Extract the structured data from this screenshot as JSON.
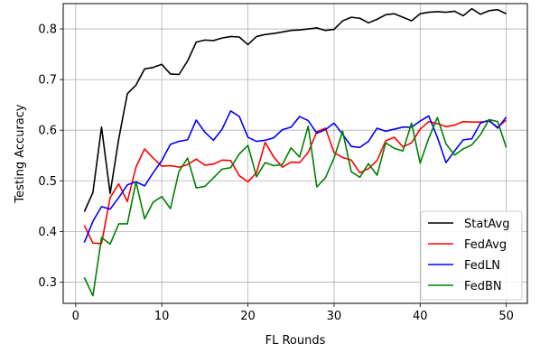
{
  "chart_data": {
    "type": "line",
    "xlabel": "FL Rounds",
    "ylabel": "Testing Accuracy",
    "xlim": [
      -1.45,
      52.45
    ],
    "ylim": [
      0.258,
      0.85
    ],
    "xticks": [
      0,
      10,
      20,
      30,
      40,
      50
    ],
    "yticks": [
      0.3,
      0.4,
      0.5,
      0.6,
      0.7,
      0.8
    ],
    "xtick_labels": [
      "0",
      "10",
      "20",
      "30",
      "40",
      "50"
    ],
    "ytick_labels": [
      "0.3",
      "0.4",
      "0.5",
      "0.6",
      "0.7",
      "0.8"
    ],
    "grid": true,
    "legend_position": "bottom-right",
    "x": [
      1,
      2,
      3,
      4,
      5,
      6,
      7,
      8,
      9,
      10,
      11,
      12,
      13,
      14,
      15,
      16,
      17,
      18,
      19,
      20,
      21,
      22,
      23,
      24,
      25,
      26,
      27,
      28,
      29,
      30,
      31,
      32,
      33,
      34,
      35,
      36,
      37,
      38,
      39,
      40,
      41,
      42,
      43,
      44,
      45,
      46,
      47,
      48,
      49,
      50
    ],
    "series": [
      {
        "name": "StatAvg",
        "color": "#000000",
        "values": [
          0.439,
          0.477,
          0.606,
          0.475,
          0.583,
          0.672,
          0.689,
          0.721,
          0.724,
          0.73,
          0.711,
          0.71,
          0.737,
          0.774,
          0.778,
          0.777,
          0.782,
          0.785,
          0.784,
          0.769,
          0.785,
          0.789,
          0.791,
          0.794,
          0.797,
          0.798,
          0.8,
          0.802,
          0.797,
          0.799,
          0.816,
          0.823,
          0.821,
          0.812,
          0.819,
          0.828,
          0.83,
          0.823,
          0.816,
          0.83,
          0.833,
          0.834,
          0.833,
          0.835,
          0.826,
          0.84,
          0.829,
          0.836,
          0.838,
          0.83
        ]
      },
      {
        "name": "FedAvg",
        "color": "#ff0000",
        "values": [
          0.412,
          0.377,
          0.376,
          0.467,
          0.494,
          0.459,
          0.527,
          0.563,
          0.545,
          0.529,
          0.53,
          0.527,
          0.532,
          0.543,
          0.531,
          0.533,
          0.541,
          0.54,
          0.51,
          0.498,
          0.516,
          0.576,
          0.547,
          0.527,
          0.537,
          0.536,
          0.556,
          0.597,
          0.604,
          0.556,
          0.546,
          0.541,
          0.516,
          0.524,
          0.54,
          0.579,
          0.586,
          0.567,
          0.575,
          0.602,
          0.617,
          0.613,
          0.607,
          0.61,
          0.617,
          0.616,
          0.616,
          0.618,
          0.606,
          0.62
        ]
      },
      {
        "name": "FedLN",
        "color": "#0000ff",
        "values": [
          0.378,
          0.42,
          0.449,
          0.444,
          0.467,
          0.492,
          0.498,
          0.49,
          0.516,
          0.54,
          0.572,
          0.578,
          0.581,
          0.62,
          0.596,
          0.58,
          0.602,
          0.638,
          0.627,
          0.586,
          0.578,
          0.58,
          0.585,
          0.601,
          0.606,
          0.627,
          0.619,
          0.594,
          0.601,
          0.614,
          0.592,
          0.568,
          0.566,
          0.578,
          0.604,
          0.598,
          0.602,
          0.606,
          0.606,
          0.618,
          0.628,
          0.586,
          0.536,
          0.559,
          0.581,
          0.583,
          0.614,
          0.62,
          0.604,
          0.626
        ]
      },
      {
        "name": "FedBN",
        "color": "#008000",
        "values": [
          0.309,
          0.273,
          0.388,
          0.375,
          0.415,
          0.415,
          0.498,
          0.425,
          0.458,
          0.469,
          0.445,
          0.519,
          0.545,
          0.486,
          0.489,
          0.506,
          0.523,
          0.526,
          0.553,
          0.57,
          0.508,
          0.536,
          0.53,
          0.532,
          0.565,
          0.547,
          0.608,
          0.488,
          0.506,
          0.545,
          0.598,
          0.518,
          0.507,
          0.534,
          0.511,
          0.575,
          0.564,
          0.559,
          0.614,
          0.535,
          0.584,
          0.625,
          0.573,
          0.551,
          0.563,
          0.571,
          0.591,
          0.621,
          0.617,
          0.566
        ]
      }
    ]
  }
}
